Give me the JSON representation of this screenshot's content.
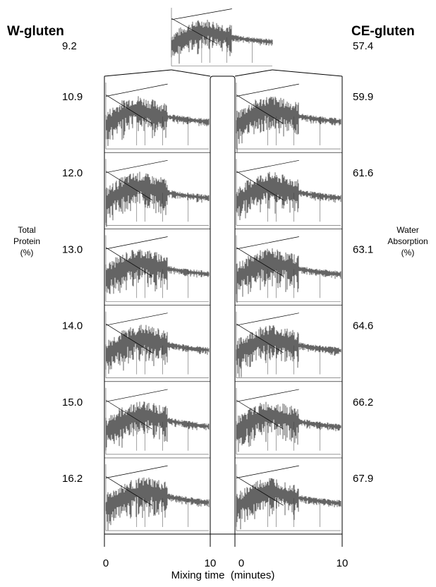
{
  "left_title": "W-gluten",
  "right_title": "CE-gluten",
  "rows": [
    {
      "protein": "9.2",
      "absorption": "57.4"
    },
    {
      "protein": "10.9",
      "absorption": "59.9"
    },
    {
      "protein": "12.0",
      "absorption": "61.6"
    },
    {
      "protein": "13.0",
      "absorption": "63.1"
    },
    {
      "protein": "14.0",
      "absorption": "64.6"
    },
    {
      "protein": "15.0",
      "absorption": "66.2"
    },
    {
      "protein": "16.2",
      "absorption": "67.9"
    }
  ],
  "left_axis_label": [
    "Total",
    "Protein",
    "(%)"
  ],
  "right_axis_label": [
    "Water",
    "Absorption",
    "(%)"
  ],
  "x_axis": {
    "ticks": [
      "0",
      "10",
      "0",
      "10"
    ],
    "label": "Mixing time  (minutes)"
  }
}
